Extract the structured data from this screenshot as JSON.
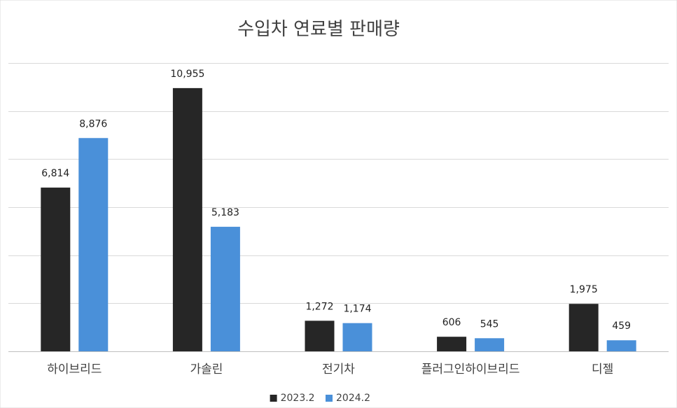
{
  "chart_data": {
    "type": "bar",
    "title": "수입차 연료별 판매량",
    "categories": [
      "하이브리드",
      "가솔린",
      "전기차",
      "플러그인하이브리드",
      "디젤"
    ],
    "series": [
      {
        "name": "2023.2",
        "color": "#262626",
        "values": [
          6814,
          10955,
          1272,
          606,
          1975
        ],
        "labels": [
          "6,814",
          "10,955",
          "1,272",
          "606",
          "1,975"
        ]
      },
      {
        "name": "2024.2",
        "color": "#4a90d9",
        "values": [
          8876,
          5183,
          1174,
          545,
          459
        ],
        "labels": [
          "8,876",
          "5,183",
          "1,174",
          "545",
          "459"
        ]
      }
    ],
    "ylim": [
      0,
      12000
    ],
    "ytick_step": 2000,
    "grid": true,
    "yaxis_labels_shown": false,
    "legend_position": "bottom"
  }
}
